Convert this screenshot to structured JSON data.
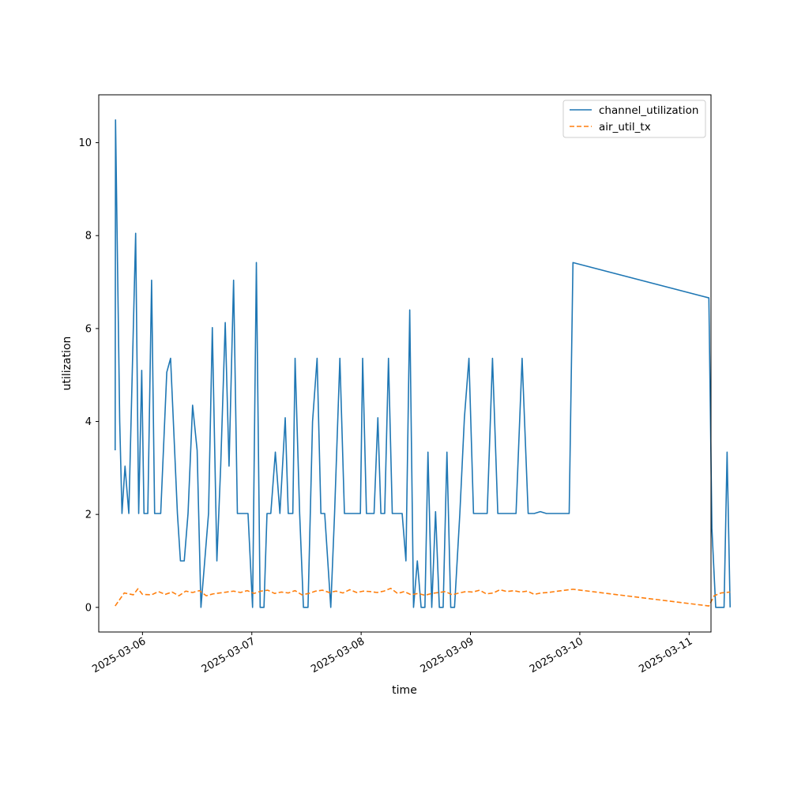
{
  "chart_data": {
    "type": "line",
    "title": "",
    "xlabel": "time",
    "ylabel": "utilization",
    "x_ticks": [
      "2025-03-06",
      "2025-03-07",
      "2025-03-08",
      "2025-03-09",
      "2025-03-10",
      "2025-03-11"
    ],
    "y_ticks": [
      0,
      2,
      4,
      6,
      8,
      10
    ],
    "xlim": [
      "2025-03-05 14:24",
      "2025-03-11 04:48"
    ],
    "ylim": [
      -0.53,
      11.03
    ],
    "grid": false,
    "legend_position": "top-right",
    "series": [
      {
        "name": "channel_utilization",
        "color": "#1f77b4",
        "style": "solid",
        "points": [
          [
            "2025-03-05 18:00",
            3.38
          ],
          [
            "2025-03-05 18:05",
            10.49
          ],
          [
            "2025-03-05 19:00",
            4.0
          ],
          [
            "2025-03-05 19:30",
            2.02
          ],
          [
            "2025-03-05 20:10",
            3.04
          ],
          [
            "2025-03-05 21:00",
            2.02
          ],
          [
            "2025-03-05 22:30",
            8.05
          ],
          [
            "2025-03-05 23:10",
            2.02
          ],
          [
            "2025-03-05 23:50",
            5.1
          ],
          [
            "2025-03-06 00:20",
            2.02
          ],
          [
            "2025-03-06 01:10",
            2.02
          ],
          [
            "2025-03-06 02:00",
            7.04
          ],
          [
            "2025-03-06 02:40",
            2.02
          ],
          [
            "2025-03-06 04:00",
            2.02
          ],
          [
            "2025-03-06 05:20",
            5.06
          ],
          [
            "2025-03-06 06:10",
            5.36
          ],
          [
            "2025-03-06 07:40",
            2.02
          ],
          [
            "2025-03-06 08:20",
            1.0
          ],
          [
            "2025-03-06 09:10",
            1.0
          ],
          [
            "2025-03-06 10:00",
            2.02
          ],
          [
            "2025-03-06 11:00",
            4.35
          ],
          [
            "2025-03-06 12:00",
            3.38
          ],
          [
            "2025-03-06 12:50",
            0.0
          ],
          [
            "2025-03-06 13:30",
            0.8
          ],
          [
            "2025-03-06 14:30",
            2.02
          ],
          [
            "2025-03-06 15:20",
            6.02
          ],
          [
            "2025-03-06 16:20",
            1.0
          ],
          [
            "2025-03-06 17:10",
            3.04
          ],
          [
            "2025-03-06 18:10",
            6.13
          ],
          [
            "2025-03-06 19:00",
            3.04
          ],
          [
            "2025-03-06 20:00",
            7.04
          ],
          [
            "2025-03-06 20:50",
            2.02
          ],
          [
            "2025-03-06 22:10",
            2.02
          ],
          [
            "2025-03-06 23:10",
            2.02
          ],
          [
            "2025-03-07 00:10",
            0.0
          ],
          [
            "2025-03-07 01:00",
            7.42
          ],
          [
            "2025-03-07 01:50",
            0.0
          ],
          [
            "2025-03-07 02:40",
            0.0
          ],
          [
            "2025-03-07 03:20",
            2.02
          ],
          [
            "2025-03-07 04:10",
            2.02
          ],
          [
            "2025-03-07 05:10",
            3.34
          ],
          [
            "2025-03-07 06:10",
            2.02
          ],
          [
            "2025-03-07 07:20",
            4.08
          ],
          [
            "2025-03-07 08:00",
            2.02
          ],
          [
            "2025-03-07 09:00",
            2.02
          ],
          [
            "2025-03-07 09:30",
            5.36
          ],
          [
            "2025-03-07 10:30",
            2.02
          ],
          [
            "2025-03-07 11:20",
            0.0
          ],
          [
            "2025-03-07 12:20",
            0.0
          ],
          [
            "2025-03-07 13:20",
            4.0
          ],
          [
            "2025-03-07 14:20",
            5.36
          ],
          [
            "2025-03-07 15:10",
            2.02
          ],
          [
            "2025-03-07 16:00",
            2.02
          ],
          [
            "2025-03-07 17:20",
            0.0
          ],
          [
            "2025-03-07 18:10",
            2.02
          ],
          [
            "2025-03-07 19:20",
            5.36
          ],
          [
            "2025-03-07 20:20",
            2.02
          ],
          [
            "2025-03-07 21:40",
            2.02
          ],
          [
            "2025-03-07 23:00",
            2.02
          ],
          [
            "2025-03-07 23:50",
            2.02
          ],
          [
            "2025-03-08 00:20",
            5.36
          ],
          [
            "2025-03-08 01:10",
            2.02
          ],
          [
            "2025-03-08 02:00",
            2.02
          ],
          [
            "2025-03-08 02:50",
            2.02
          ],
          [
            "2025-03-08 03:40",
            4.08
          ],
          [
            "2025-03-08 04:20",
            2.02
          ],
          [
            "2025-03-08 05:10",
            2.02
          ],
          [
            "2025-03-08 06:00",
            5.36
          ],
          [
            "2025-03-08 06:50",
            2.02
          ],
          [
            "2025-03-08 08:00",
            2.02
          ],
          [
            "2025-03-08 09:00",
            2.02
          ],
          [
            "2025-03-08 09:50",
            1.0
          ],
          [
            "2025-03-08 10:40",
            6.4
          ],
          [
            "2025-03-08 11:30",
            0.0
          ],
          [
            "2025-03-08 12:20",
            1.0
          ],
          [
            "2025-03-08 13:10",
            0.0
          ],
          [
            "2025-03-08 14:00",
            0.0
          ],
          [
            "2025-03-08 14:40",
            3.34
          ],
          [
            "2025-03-08 15:30",
            0.0
          ],
          [
            "2025-03-08 16:20",
            2.06
          ],
          [
            "2025-03-08 17:10",
            0.0
          ],
          [
            "2025-03-08 18:00",
            0.0
          ],
          [
            "2025-03-08 18:50",
            3.34
          ],
          [
            "2025-03-08 19:40",
            0.0
          ],
          [
            "2025-03-08 20:30",
            0.0
          ],
          [
            "2025-03-08 21:40",
            2.02
          ],
          [
            "2025-03-08 22:40",
            4.08
          ],
          [
            "2025-03-08 23:40",
            5.36
          ],
          [
            "2025-03-09 00:40",
            2.02
          ],
          [
            "2025-03-09 01:40",
            2.02
          ],
          [
            "2025-03-09 02:40",
            2.02
          ],
          [
            "2025-03-09 03:40",
            2.02
          ],
          [
            "2025-03-09 04:50",
            5.36
          ],
          [
            "2025-03-09 06:00",
            2.02
          ],
          [
            "2025-03-09 07:10",
            2.02
          ],
          [
            "2025-03-09 08:10",
            2.02
          ],
          [
            "2025-03-09 09:00",
            2.02
          ],
          [
            "2025-03-09 10:00",
            2.02
          ],
          [
            "2025-03-09 11:20",
            5.36
          ],
          [
            "2025-03-09 12:40",
            2.02
          ],
          [
            "2025-03-09 14:00",
            2.02
          ],
          [
            "2025-03-09 15:20",
            2.06
          ],
          [
            "2025-03-09 16:40",
            2.02
          ],
          [
            "2025-03-09 19:00",
            2.02
          ],
          [
            "2025-03-09 21:30",
            2.02
          ],
          [
            "2025-03-09 21:40",
            2.02
          ],
          [
            "2025-03-09 22:30",
            7.42
          ],
          [
            "2025-03-11 04:20",
            6.66
          ],
          [
            "2025-03-11 05:00",
            1.7
          ],
          [
            "2025-03-11 05:50",
            0.0
          ],
          [
            "2025-03-11 06:50",
            0.0
          ],
          [
            "2025-03-11 07:40",
            0.0
          ],
          [
            "2025-03-11 08:20",
            3.34
          ],
          [
            "2025-03-11 09:00",
            0.0
          ]
        ]
      },
      {
        "name": "air_util_tx",
        "color": "#ff7f0e",
        "style": "dashed",
        "points": [
          [
            "2025-03-05 18:00",
            0.03
          ],
          [
            "2025-03-05 20:00",
            0.31
          ],
          [
            "2025-03-05 22:00",
            0.27
          ],
          [
            "2025-03-05 23:00",
            0.4
          ],
          [
            "2025-03-06 00:00",
            0.28
          ],
          [
            "2025-03-06 02:00",
            0.27
          ],
          [
            "2025-03-06 03:30",
            0.34
          ],
          [
            "2025-03-06 05:00",
            0.28
          ],
          [
            "2025-03-06 06:30",
            0.33
          ],
          [
            "2025-03-06 08:00",
            0.25
          ],
          [
            "2025-03-06 09:30",
            0.35
          ],
          [
            "2025-03-06 11:00",
            0.32
          ],
          [
            "2025-03-06 12:30",
            0.36
          ],
          [
            "2025-03-06 14:00",
            0.25
          ],
          [
            "2025-03-06 15:30",
            0.29
          ],
          [
            "2025-03-06 17:00",
            0.31
          ],
          [
            "2025-03-06 18:30",
            0.33
          ],
          [
            "2025-03-06 20:00",
            0.35
          ],
          [
            "2025-03-06 21:30",
            0.32
          ],
          [
            "2025-03-06 23:00",
            0.36
          ],
          [
            "2025-03-07 00:30",
            0.3
          ],
          [
            "2025-03-07 02:00",
            0.35
          ],
          [
            "2025-03-07 03:30",
            0.37
          ],
          [
            "2025-03-07 05:00",
            0.3
          ],
          [
            "2025-03-07 06:30",
            0.33
          ],
          [
            "2025-03-07 08:00",
            0.31
          ],
          [
            "2025-03-07 09:30",
            0.36
          ],
          [
            "2025-03-07 11:00",
            0.27
          ],
          [
            "2025-03-07 12:30",
            0.3
          ],
          [
            "2025-03-07 14:00",
            0.35
          ],
          [
            "2025-03-07 15:30",
            0.37
          ],
          [
            "2025-03-07 17:00",
            0.32
          ],
          [
            "2025-03-07 18:30",
            0.35
          ],
          [
            "2025-03-07 20:00",
            0.31
          ],
          [
            "2025-03-07 21:30",
            0.38
          ],
          [
            "2025-03-07 23:00",
            0.32
          ],
          [
            "2025-03-08 00:30",
            0.35
          ],
          [
            "2025-03-08 02:00",
            0.34
          ],
          [
            "2025-03-08 03:30",
            0.32
          ],
          [
            "2025-03-08 05:00",
            0.35
          ],
          [
            "2025-03-08 06:30",
            0.41
          ],
          [
            "2025-03-08 08:00",
            0.3
          ],
          [
            "2025-03-08 09:30",
            0.34
          ],
          [
            "2025-03-08 11:00",
            0.27
          ],
          [
            "2025-03-08 12:30",
            0.3
          ],
          [
            "2025-03-08 14:00",
            0.26
          ],
          [
            "2025-03-08 15:30",
            0.3
          ],
          [
            "2025-03-08 17:00",
            0.32
          ],
          [
            "2025-03-08 18:30",
            0.34
          ],
          [
            "2025-03-08 20:00",
            0.27
          ],
          [
            "2025-03-08 21:30",
            0.31
          ],
          [
            "2025-03-08 23:00",
            0.34
          ],
          [
            "2025-03-09 00:30",
            0.33
          ],
          [
            "2025-03-09 02:00",
            0.37
          ],
          [
            "2025-03-09 03:30",
            0.29
          ],
          [
            "2025-03-09 05:00",
            0.31
          ],
          [
            "2025-03-09 06:30",
            0.38
          ],
          [
            "2025-03-09 08:00",
            0.34
          ],
          [
            "2025-03-09 09:30",
            0.36
          ],
          [
            "2025-03-09 11:00",
            0.33
          ],
          [
            "2025-03-09 12:30",
            0.35
          ],
          [
            "2025-03-09 14:00",
            0.28
          ],
          [
            "2025-03-09 15:30",
            0.31
          ],
          [
            "2025-03-09 17:00",
            0.32
          ],
          [
            "2025-03-09 18:30",
            0.34
          ],
          [
            "2025-03-09 20:00",
            0.36
          ],
          [
            "2025-03-09 22:30",
            0.39
          ],
          [
            "2025-03-11 04:20",
            0.03
          ],
          [
            "2025-03-11 05:30",
            0.25
          ],
          [
            "2025-03-11 07:00",
            0.31
          ],
          [
            "2025-03-11 09:00",
            0.33
          ]
        ]
      }
    ]
  }
}
